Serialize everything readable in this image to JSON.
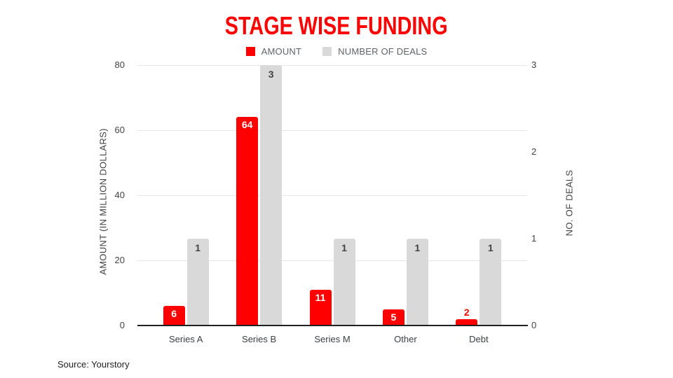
{
  "title": {
    "text": "STAGE WISE FUNDING",
    "color": "#ff0000"
  },
  "legend": [
    {
      "label": "AMOUNT",
      "color": "#ff0000"
    },
    {
      "label": "NUMBER OF DEALS",
      "color": "#d9d9d9"
    }
  ],
  "footer": {
    "source": "Source: Yourstory"
  },
  "chart_data": {
    "type": "bar",
    "title": "STAGE WISE FUNDING",
    "categories": [
      "Series A",
      "Series B",
      "Series M",
      "Other",
      "Debt"
    ],
    "series": [
      {
        "name": "AMOUNT",
        "axis": "left",
        "color": "#ff0000",
        "values": [
          6,
          64,
          11,
          5,
          2
        ]
      },
      {
        "name": "NUMBER OF DEALS",
        "axis": "right",
        "color": "#d9d9d9",
        "values": [
          1,
          3,
          1,
          1,
          1
        ]
      }
    ],
    "left_axis": {
      "label": "AMOUNT (IN MILLION DOLLARS)",
      "ticks": [
        0,
        20,
        40,
        60,
        80
      ],
      "range": [
        0,
        80
      ]
    },
    "right_axis": {
      "label": "NO. OF DEALS",
      "ticks": [
        0,
        1,
        2,
        3
      ],
      "range": [
        0,
        3
      ]
    },
    "grid": true,
    "legend_position": "top",
    "colors": {
      "amount_label_inside": "#ffffff",
      "amount_label_outside": "#ff0000",
      "deals_label": "#424242",
      "gridline": "#e6e6e6",
      "baseline": "#212121"
    }
  }
}
